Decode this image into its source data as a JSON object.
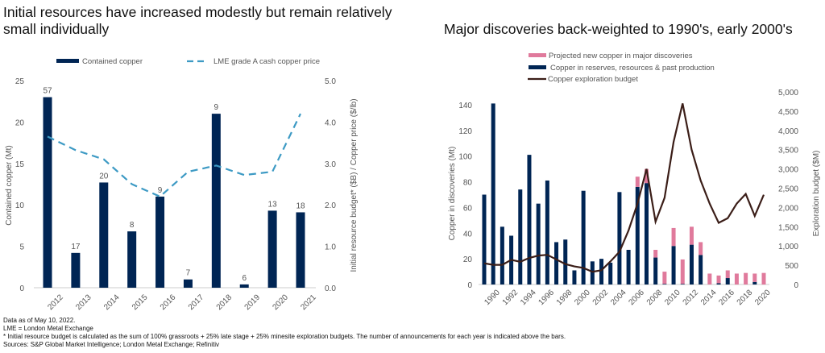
{
  "chart_data": [
    {
      "type": "bar+line",
      "title": "Initial resources have increased modestly but remain relatively small individually",
      "categories": [
        "2012",
        "2013",
        "2014",
        "2015",
        "2016",
        "2017",
        "2018",
        "2019",
        "2020",
        "2021"
      ],
      "series": [
        {
          "name": "Contained copper",
          "type": "bar",
          "axis": "left",
          "color": "#002554",
          "values": [
            23,
            4.2,
            12.7,
            6.8,
            11,
            1,
            21,
            0.4,
            9.3,
            9.1
          ],
          "data_labels": [
            "57",
            "17",
            "20",
            "8",
            "9",
            "7",
            "9",
            "6",
            "13",
            "18"
          ]
        },
        {
          "name": "LME grade A cash copper price",
          "type": "line",
          "style": "dashed",
          "axis": "right",
          "color": "#3d9ac4",
          "values": [
            3.65,
            3.32,
            3.1,
            2.5,
            2.2,
            2.8,
            2.95,
            2.72,
            2.8,
            4.2
          ]
        }
      ],
      "ylabel": "Contained copper (Mt)",
      "ylim": [
        0,
        25
      ],
      "yticks": [
        "0",
        "5",
        "10",
        "15",
        "20",
        "25"
      ],
      "y2label": "Initial resource budget* ($B) / Copper price ($/lb)",
      "y2lim": [
        0,
        5
      ],
      "y2ticks": [
        "0.0",
        "1.0",
        "2.0",
        "3.0",
        "4.0",
        "5.0"
      ],
      "legend": "top",
      "grid": false
    },
    {
      "type": "stacked-bar+line",
      "title": "Major discoveries back-weighted to 1990's, early 2000's",
      "categories": [
        "1990",
        "1991",
        "1992",
        "1993",
        "1994",
        "1995",
        "1996",
        "1997",
        "1998",
        "1999",
        "2000",
        "2001",
        "2002",
        "2003",
        "2004",
        "2005",
        "2006",
        "2007",
        "2008",
        "2009",
        "2010",
        "2011",
        "2012",
        "2013",
        "2014",
        "2015",
        "2016",
        "2017",
        "2018",
        "2019",
        "2020",
        "2021"
      ],
      "xticklabels": [
        "1990",
        "1992",
        "1994",
        "1996",
        "1998",
        "2000",
        "2002",
        "2004",
        "2006",
        "2008",
        "2010",
        "2012",
        "2014",
        "2016",
        "2018",
        "2020"
      ],
      "series": [
        {
          "name": "Copper in reserves, resources & past production",
          "type": "bar",
          "axis": "left",
          "color": "#002554",
          "values": [
            70,
            141,
            45,
            38,
            74,
            101,
            63,
            81,
            33,
            35,
            11,
            73,
            18,
            20,
            17,
            72,
            27,
            76,
            79,
            21,
            0.5,
            30,
            0.5,
            31,
            23,
            0,
            1,
            5,
            0,
            0,
            2,
            0
          ]
        },
        {
          "name": "Projected new copper in major discoveries",
          "type": "bar",
          "axis": "left",
          "color": "#e07a9c",
          "values": [
            0,
            0,
            0,
            0,
            0,
            0,
            0,
            0,
            0,
            0,
            0,
            0,
            0,
            0,
            0,
            0,
            0,
            8,
            11,
            6,
            9.5,
            14,
            19,
            14,
            10,
            8.5,
            6,
            6,
            8.5,
            9,
            6.5,
            9
          ]
        },
        {
          "name": "Copper exploration budget",
          "type": "line",
          "axis": "right",
          "color": "#3b1e18",
          "values": [
            550,
            510,
            510,
            640,
            590,
            690,
            750,
            770,
            650,
            530,
            470,
            430,
            330,
            370,
            600,
            850,
            1400,
            2100,
            3000,
            1630,
            2250,
            3700,
            4700,
            3500,
            2700,
            2100,
            1600,
            1720,
            2100,
            2350,
            1780,
            2330
          ]
        }
      ],
      "ylabel": "Copper in discoveries (Mt)",
      "ylim": [
        0,
        140
      ],
      "yticks": [
        "0",
        "20",
        "40",
        "60",
        "80",
        "100",
        "120",
        "140"
      ],
      "y2label": "Exploration budget ($M)",
      "y2lim": [
        0,
        5000
      ],
      "y2ticks": [
        "0",
        "500",
        "1,000",
        "1,500",
        "2,000",
        "2,500",
        "3,000",
        "3,500",
        "4,000",
        "4,500",
        "5,000"
      ],
      "legend": "top",
      "grid": false
    }
  ],
  "notes": [
    "Data as of May 10, 2022.",
    "LME = London Metal Exchange",
    "* Initial resource budget is calculated as the sum of 100% grassroots + 25% late stage + 25% minesite exploration budgets. The number of announcements for each year is indicated above the bars.",
    "Sources: S&P Global Market Intelligence; London Metal Exchange; Refinitiv"
  ]
}
